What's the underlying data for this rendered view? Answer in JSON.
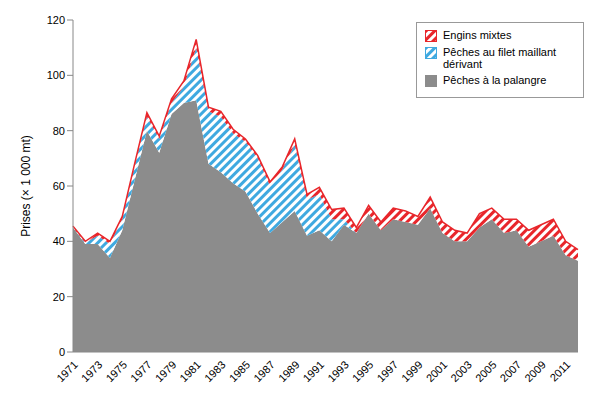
{
  "chart_data": {
    "type": "area",
    "stacked": true,
    "y_label": "Prises (× 1 000 mt)",
    "categories": [
      "1971",
      null,
      "1973",
      null,
      "1975",
      null,
      "1977",
      null,
      "1979",
      null,
      "1981",
      null,
      "1983",
      null,
      "1985",
      null,
      "1987",
      null,
      "1989",
      null,
      "1991",
      null,
      "1993",
      null,
      "1995",
      null,
      "1997",
      null,
      "1999",
      null,
      "2001",
      null,
      "2003",
      null,
      "2005",
      null,
      "2007",
      null,
      "2009",
      null,
      "2011",
      null
    ],
    "series": [
      {
        "name": "Pêches à la palangre",
        "color": "#8c8c8c",
        "values": [
          45,
          39,
          39,
          34,
          44,
          62,
          80,
          72,
          86,
          90,
          91,
          68,
          65,
          61,
          58,
          50,
          43,
          47,
          51,
          42,
          44,
          40,
          46,
          43,
          50,
          44,
          48,
          47,
          46,
          52,
          43,
          40,
          40,
          45,
          48,
          43,
          44,
          38,
          40,
          42,
          35,
          33
        ]
      },
      {
        "name": "Pêches au filet maillant dérivant",
        "color": "#3fa9e0",
        "values": [
          0,
          0.5,
          3,
          5,
          4,
          5,
          5,
          5,
          4,
          6,
          19,
          19,
          20,
          18,
          18,
          20,
          17,
          19,
          24,
          13,
          13,
          8,
          2,
          0,
          0,
          0,
          0,
          0,
          0,
          0,
          0,
          0,
          0,
          0,
          0,
          0,
          0,
          0,
          0,
          0,
          0,
          0
        ]
      },
      {
        "name": "Engins mixtes",
        "color": "#e8262b",
        "values": [
          0.5,
          0.5,
          1,
          1,
          1,
          1,
          1.5,
          1,
          1.5,
          2,
          3,
          1.5,
          2,
          1.5,
          1,
          1,
          1.5,
          1,
          2,
          2,
          2.5,
          3.5,
          4,
          2,
          3,
          3,
          4,
          4,
          3,
          4,
          4,
          4,
          3,
          5,
          4,
          5,
          4,
          6,
          6,
          6,
          5,
          4
        ]
      }
    ],
    "ylim": [
      0,
      120
    ],
    "yticks": [
      0,
      20,
      40,
      60,
      80,
      100,
      120
    ],
    "grid": false,
    "legend": "upper right"
  }
}
